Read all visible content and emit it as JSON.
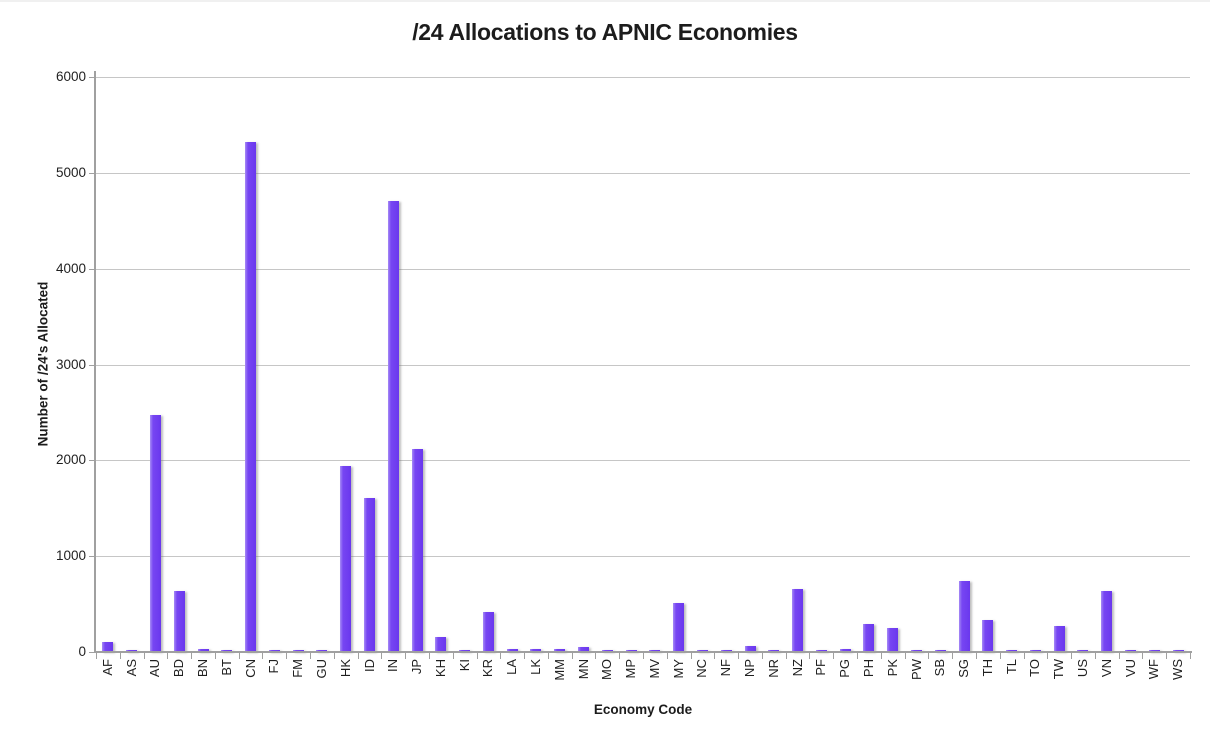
{
  "chart_data": {
    "type": "bar",
    "title": "/24 Allocations to APNIC Economies",
    "xlabel": "Economy Code",
    "ylabel": "Number of /24's Allocated",
    "categories": [
      "AF",
      "AS",
      "AU",
      "BD",
      "BN",
      "BT",
      "CN",
      "FJ",
      "FM",
      "GU",
      "HK",
      "ID",
      "IN",
      "JP",
      "KH",
      "KI",
      "KR",
      "LA",
      "LK",
      "MM",
      "MN",
      "MO",
      "MP",
      "MV",
      "MY",
      "NC",
      "NF",
      "NP",
      "NR",
      "NZ",
      "PF",
      "PG",
      "PH",
      "PK",
      "PW",
      "SB",
      "SG",
      "TH",
      "TL",
      "TO",
      "TW",
      "US",
      "VN",
      "VU",
      "WF",
      "WS"
    ],
    "values": [
      100,
      15,
      2470,
      635,
      30,
      15,
      5320,
      15,
      15,
      20,
      1940,
      1610,
      4710,
      2120,
      160,
      15,
      420,
      30,
      35,
      35,
      55,
      15,
      15,
      15,
      510,
      15,
      15,
      65,
      15,
      655,
      15,
      30,
      290,
      250,
      15,
      15,
      740,
      330,
      15,
      15,
      270,
      15,
      635,
      15,
      15,
      15
    ],
    "ylim": [
      0,
      6000
    ],
    "ytick_interval": 1000,
    "grid": "horizontal",
    "legend": "none",
    "colors": {
      "bar": "#6a37ee",
      "bar_highlight": "#a78cf6",
      "gridline": "#c6c6c6",
      "axis": "#a0a0a0",
      "text": "#1f1f1f"
    }
  }
}
